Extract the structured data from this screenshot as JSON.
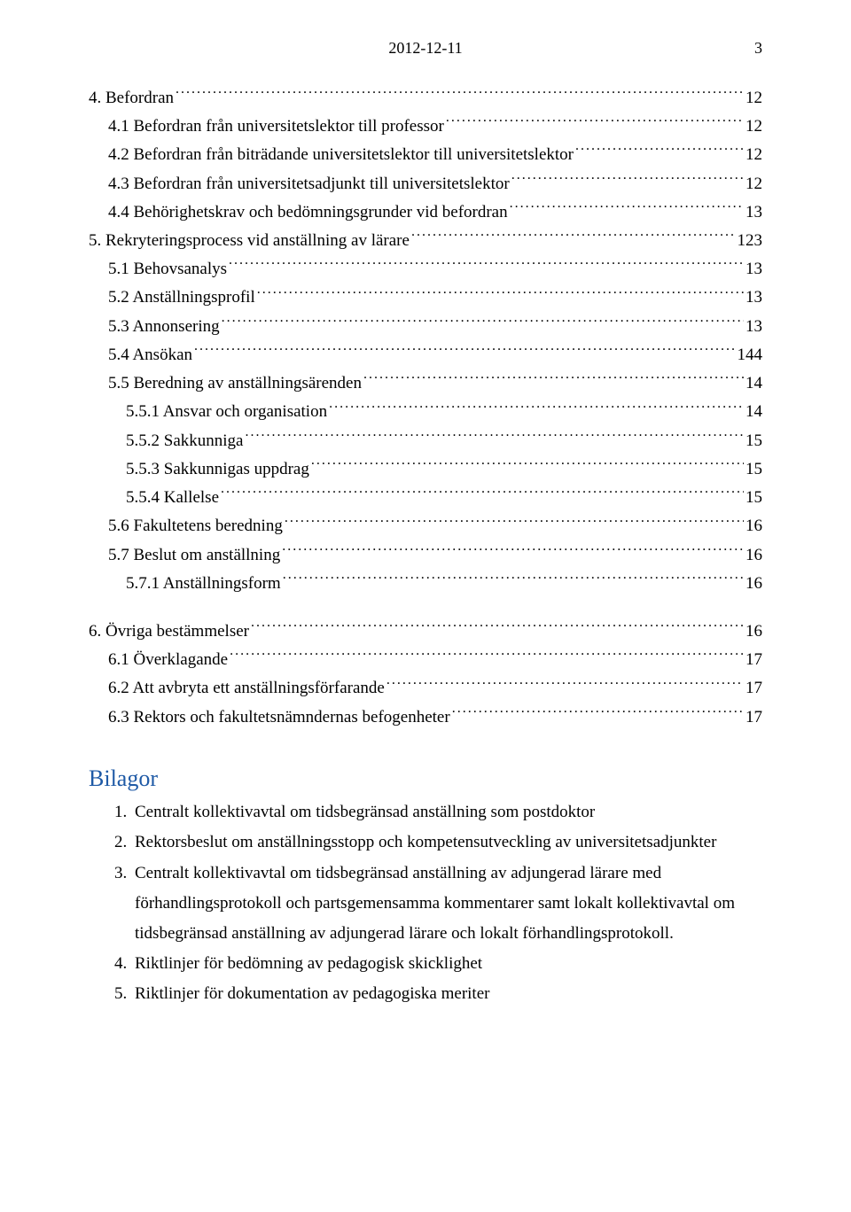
{
  "header": {
    "date": "2012-12-11",
    "pagenum": "3"
  },
  "toc": [
    {
      "level": 0,
      "label": "4. Befordran",
      "page": "12"
    },
    {
      "level": 1,
      "label": "4.1 Befordran från universitetslektor till professor",
      "page": "12"
    },
    {
      "level": 1,
      "label": "4.2 Befordran från biträdande universitetslektor till universitetslektor",
      "page": "12"
    },
    {
      "level": 1,
      "label": "4.3 Befordran från universitetsadjunkt till universitetslektor",
      "page": "12"
    },
    {
      "level": 1,
      "label": "4.4 Behörighetskrav och bedömningsgrunder vid befordran",
      "page": "13"
    },
    {
      "level": 0,
      "label": "5. Rekryteringsprocess vid anställning av lärare",
      "page": "123"
    },
    {
      "level": 1,
      "label": "5.1 Behovsanalys",
      "page": "13"
    },
    {
      "level": 1,
      "label": "5.2 Anställningsprofil",
      "page": "13"
    },
    {
      "level": 1,
      "label": "5.3 Annonsering",
      "page": "13"
    },
    {
      "level": 1,
      "label": "5.4 Ansökan",
      "page": " 144"
    },
    {
      "level": 1,
      "label": "5.5 Beredning av anställningsärenden",
      "page": "14"
    },
    {
      "level": 2,
      "label": "5.5.1 Ansvar och organisation",
      "page": "14"
    },
    {
      "level": 2,
      "label": "5.5.2 Sakkunniga",
      "page": "15"
    },
    {
      "level": 2,
      "label": "5.5.3 Sakkunnigas uppdrag",
      "page": "15"
    },
    {
      "level": 2,
      "label": "5.5.4 Kallelse",
      "page": "15"
    },
    {
      "level": 1,
      "label": "5.6 Fakultetens beredning",
      "page": "16"
    },
    {
      "level": 1,
      "label": "5.7 Beslut om anställning",
      "page": "16"
    },
    {
      "level": 2,
      "label": "5.7.1 Anställningsform",
      "page": "16"
    },
    {
      "level": 0,
      "gap": true
    },
    {
      "level": 0,
      "label": "6. Övriga bestämmelser",
      "page": "16"
    },
    {
      "level": 1,
      "label": "6.1 Överklagande",
      "page": " 17"
    },
    {
      "level": 1,
      "label": "6.2 Att avbryta ett anställningsförfarande",
      "page": " 17"
    },
    {
      "level": 1,
      "label": "6.3 Rektors och fakultetsnämndernas befogenheter",
      "page": " 17"
    }
  ],
  "bilagor": {
    "title": "Bilagor",
    "items": [
      "Centralt kollektivavtal om tidsbegränsad anställning som postdoktor",
      "Rektorsbeslut om anställningsstopp och kompetensutveckling av universitetsadjunkter",
      "Centralt kollektivavtal om tidsbegränsad anställning av adjungerad lärare med förhandlingsprotokoll och partsgemensamma kommentarer samt lokalt kollektivavtal om tidsbegränsad anställning av adjungerad lärare och lokalt förhandlingsprotokoll.",
      "Riktlinjer för bedömning av pedagogisk skicklighet",
      "Riktlinjer för dokumentation av pedagogiska meriter"
    ]
  },
  "colors": {
    "text": "#000000",
    "heading": "#1f5aa6",
    "background": "#ffffff"
  }
}
